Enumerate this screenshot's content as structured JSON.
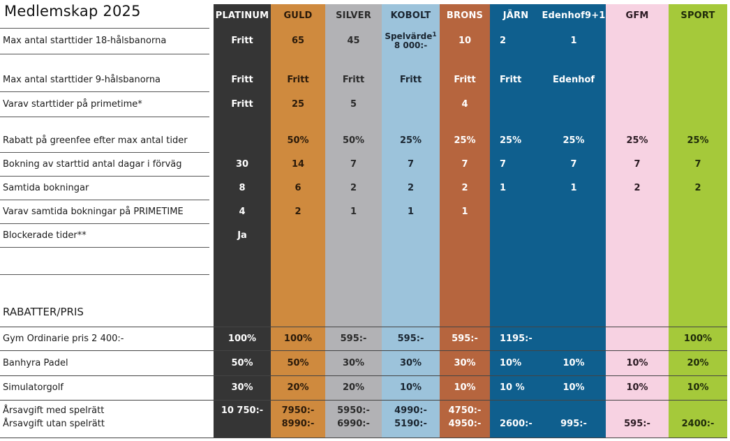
{
  "title": "Medlemskap 2025",
  "columns": [
    {
      "key": "platinum",
      "name": "PLATINUM",
      "bg": "#353535",
      "fg": "#ffffff",
      "hdr_bg": "#353535",
      "hdr_fg": "#ffffff"
    },
    {
      "key": "guld",
      "name": "GULD",
      "bg": "#cf8a3e",
      "fg": "#2a1a0a",
      "hdr_bg": "#cf8a3e",
      "hdr_fg": "#2a1a0a"
    },
    {
      "key": "silver",
      "name": "SILVER",
      "bg": "#b2b2b5",
      "fg": "#2a2a2a",
      "hdr_bg": "#b2b2b5",
      "hdr_fg": "#2a2a2a"
    },
    {
      "key": "kobolt",
      "name": "KOBOLT",
      "bg": "#9cc3db",
      "fg": "#1a2530",
      "hdr_bg": "#9cc3db",
      "hdr_fg": "#1a2530"
    },
    {
      "key": "brons",
      "name": "BRONS",
      "bg": "#b6653e",
      "fg": "#ffffff",
      "hdr_bg": "#b6653e",
      "hdr_fg": "#ffffff"
    },
    {
      "key": "jarn",
      "name": "JÄRN",
      "bg": "#0f5f8e",
      "fg": "#ffffff",
      "hdr_bg": "#0f5f8e",
      "hdr_fg": "#ffffff"
    },
    {
      "key": "edenhof",
      "name": "Edenhof9+1",
      "bg": "#0f5f8e",
      "fg": "#ffffff",
      "hdr_bg": "#0f5f8e",
      "hdr_fg": "#ffffff"
    },
    {
      "key": "gfm",
      "name": "GFM",
      "bg": "#f7d2e2",
      "fg": "#2a1a22",
      "hdr_bg": "#f7d2e2",
      "hdr_fg": "#2a1a22"
    },
    {
      "key": "sport",
      "name": "SPORT",
      "bg": "#a5c93a",
      "fg": "#1f2a0a",
      "hdr_bg": "#a5c93a",
      "hdr_fg": "#1f2a0a"
    }
  ],
  "rows": [
    {
      "label": "Max antal starttider 18-hålsbanorna",
      "values": [
        "Fritt",
        "65",
        "45",
        "Spelvärde",
        "10",
        "2",
        "1",
        "",
        ""
      ],
      "kobolt_sub": "8 000:-",
      "kobolt_sup": "1"
    },
    {
      "label": "Max antal starttider 9-hålsbanorna",
      "values": [
        "Fritt",
        "Fritt",
        "Fritt",
        "Fritt",
        "Fritt",
        "Fritt",
        "Edenhof",
        "",
        ""
      ]
    },
    {
      "label": "Varav starttider på primetime*",
      "values": [
        "Fritt",
        "25",
        "5",
        "",
        "4",
        "",
        "",
        "",
        ""
      ]
    },
    {
      "label": "Rabatt på greenfee efter max antal tider",
      "values": [
        "",
        "50%",
        "50%",
        "25%",
        "25%",
        "25%",
        "25%",
        "25%",
        "25%"
      ]
    },
    {
      "label": "Bokning av starttid antal dagar i förväg",
      "values": [
        "30",
        "14",
        "7",
        "7",
        "7",
        "7",
        "7",
        "7",
        "7"
      ]
    },
    {
      "label": "Samtida bokningar",
      "values": [
        "8",
        "6",
        "2",
        "2",
        "2",
        "1",
        "1",
        "2",
        "2"
      ]
    },
    {
      "label": "Varav samtida bokningar på PRIMETIME",
      "values": [
        "4",
        "2",
        "1",
        "1",
        "1",
        "",
        "",
        "",
        ""
      ]
    },
    {
      "label": "Blockerade tider**",
      "values": [
        "Ja",
        "",
        "",
        "",
        "",
        "",
        "",
        "",
        ""
      ]
    },
    {
      "label": "",
      "values": [
        "",
        "",
        "",
        "",
        "",
        "",
        "",
        "",
        ""
      ]
    },
    {
      "label": "RABATTER/PRIS",
      "values": [
        "",
        "",
        "",
        "",
        "",
        "",
        "",
        "",
        ""
      ]
    },
    {
      "label": "Gym Ordinarie pris 2 400:-",
      "values": [
        "100%",
        "100%",
        "595:-",
        "595:-",
        "595:-",
        "1195:-",
        "",
        "",
        "100%"
      ]
    },
    {
      "label": "Banhyra Padel",
      "values": [
        "50%",
        "50%",
        "30%",
        "30%",
        "30%",
        "10%",
        "10%",
        "10%",
        "20%"
      ]
    },
    {
      "label": "Simulatorgolf",
      "values": [
        "30%",
        "20%",
        "20%",
        "10%",
        "10%",
        "10 %",
        "10%",
        "10%",
        "10%"
      ]
    }
  ],
  "fees": {
    "label_with": "Årsavgift med spelrätt",
    "label_without": "Årsavgift utan spelrätt",
    "with": [
      "10 750:-",
      "7950:-",
      "5950:-",
      "4990:-",
      "4750:-",
      "",
      "",
      "",
      ""
    ],
    "without": [
      "",
      "8990:-",
      "6990:-",
      "5190:-",
      "4950:-",
      "2600:-",
      "995:-",
      "595:-",
      "2400:-"
    ]
  }
}
